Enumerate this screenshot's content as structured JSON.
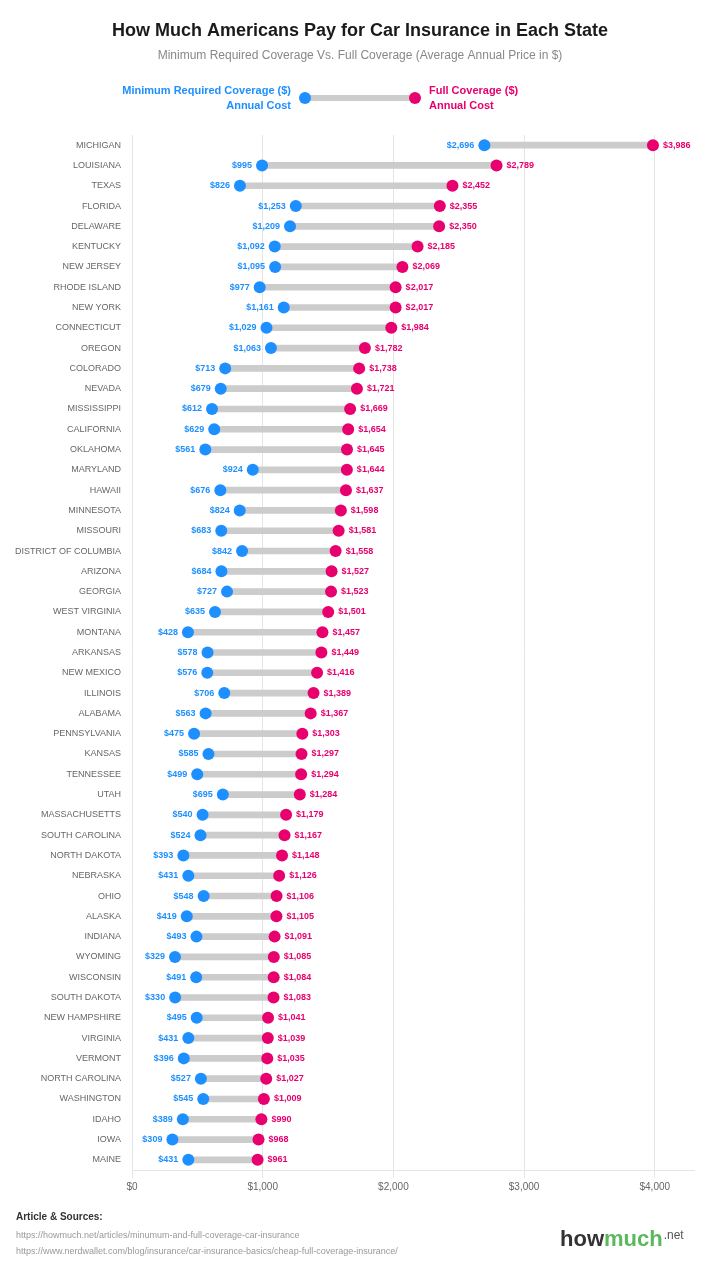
{
  "chart_data": {
    "type": "dumbbell",
    "orientation": "horizontal",
    "title": "How Much Americans Pay for Car Insurance in Each State",
    "subtitle": "Minimum Required Coverage Vs. Full Coverage (Average Annual Price in $)",
    "categories": [
      "MICHIGAN",
      "LOUISIANA",
      "TEXAS",
      "FLORIDA",
      "DELAWARE",
      "KENTUCKY",
      "NEW JERSEY",
      "RHODE ISLAND",
      "NEW YORK",
      "CONNECTICUT",
      "OREGON",
      "COLORADO",
      "NEVADA",
      "MISSISSIPPI",
      "CALIFORNIA",
      "OKLAHOMA",
      "MARYLAND",
      "HAWAII",
      "MINNESOTA",
      "MISSOURI",
      "DISTRICT OF COLUMBIA",
      "ARIZONA",
      "GEORGIA",
      "WEST VIRGINIA",
      "MONTANA",
      "ARKANSAS",
      "NEW MEXICO",
      "ILLINOIS",
      "ALABAMA",
      "PENNSYLVANIA",
      "KANSAS",
      "TENNESSEE",
      "UTAH",
      "MASSACHUSETTS",
      "SOUTH CAROLINA",
      "NORTH DAKOTA",
      "NEBRASKA",
      "OHIO",
      "ALASKA",
      "INDIANA",
      "WYOMING",
      "WISCONSIN",
      "SOUTH DAKOTA",
      "NEW HAMPSHIRE",
      "VIRGINIA",
      "VERMONT",
      "NORTH CAROLINA",
      "WASHINGTON",
      "IDAHO",
      "IOWA",
      "MAINE"
    ],
    "series": [
      {
        "name": "Minimum Required Coverage ($)\nAnnual Cost",
        "color": "#1E8FFF",
        "values": [
          2696,
          995,
          826,
          1253,
          1209,
          1092,
          1095,
          977,
          1161,
          1029,
          1063,
          713,
          679,
          612,
          629,
          561,
          924,
          676,
          824,
          683,
          842,
          684,
          727,
          635,
          428,
          578,
          576,
          706,
          563,
          475,
          585,
          499,
          695,
          540,
          524,
          393,
          431,
          548,
          419,
          493,
          329,
          491,
          330,
          495,
          431,
          396,
          527,
          545,
          389,
          309,
          431
        ],
        "value_labels": [
          "$2,696",
          "$995",
          "$826",
          "$1,253",
          "$1,209",
          "$1,092",
          "$1,095",
          "$977",
          "$1,161",
          "$1,029",
          "$1,063",
          "$713",
          "$679",
          "$612",
          "$629",
          "$561",
          "$924",
          "$676",
          "$824",
          "$683",
          "$842",
          "$684",
          "$727",
          "$635",
          "$428",
          "$578",
          "$576",
          "$706",
          "$563",
          "$475",
          "$585",
          "$499",
          "$695",
          "$540",
          "$524",
          "$393",
          "$431",
          "$548",
          "$419",
          "$493",
          "$329",
          "$491",
          "$330",
          "$495",
          "$431",
          "$396",
          "$527",
          "$545",
          "$389",
          "$309",
          "$431"
        ]
      },
      {
        "name": "Full Coverage ($)\nAnnual Cost",
        "color": "#E8006E",
        "values": [
          3986,
          2789,
          2452,
          2355,
          2350,
          2185,
          2069,
          2017,
          2017,
          1984,
          1782,
          1738,
          1721,
          1669,
          1654,
          1645,
          1644,
          1637,
          1598,
          1581,
          1558,
          1527,
          1523,
          1501,
          1457,
          1449,
          1416,
          1389,
          1367,
          1303,
          1297,
          1294,
          1284,
          1179,
          1167,
          1148,
          1126,
          1106,
          1105,
          1091,
          1085,
          1084,
          1083,
          1041,
          1039,
          1035,
          1027,
          1009,
          990,
          968,
          961
        ],
        "value_labels": [
          "$3,986",
          "$2,789",
          "$2,452",
          "$2,355",
          "$2,350",
          "$2,185",
          "$2,069",
          "$2,017",
          "$2,017",
          "$1,984",
          "$1,782",
          "$1,738",
          "$1,721",
          "$1,669",
          "$1,654",
          "$1,645",
          "$1,644",
          "$1,637",
          "$1,598",
          "$1,581",
          "$1,558",
          "$1,527",
          "$1,523",
          "$1,501",
          "$1,457",
          "$1,449",
          "$1,416",
          "$1,389",
          "$1,367",
          "$1,303",
          "$1,297",
          "$1,294",
          "$1,284",
          "$1,179",
          "$1,167",
          "$1,148",
          "$1,126",
          "$1,106",
          "$1,105",
          "$1,091",
          "$1,085",
          "$1,084",
          "$1,083",
          "$1,041",
          "$1,039",
          "$1,035",
          "$1,027",
          "$1,009",
          "$990",
          "$968",
          "$961"
        ]
      }
    ],
    "xlim": [
      0,
      4300
    ],
    "xticks": [
      {
        "value": 0,
        "label": "$0"
      },
      {
        "value": 1000,
        "label": "$1,000"
      },
      {
        "value": 2000,
        "label": "$2,000"
      },
      {
        "value": 3000,
        "label": "$3,000"
      },
      {
        "value": 4000,
        "label": "$4,000"
      }
    ],
    "grid": true,
    "legend": "top",
    "data_labels": true,
    "annotations": [
      "Article & Sources:",
      "https://howmuch.net/articles/minumum-and-full-coverage-car-insurance",
      "https://www.nerdwallet.com/blog/insurance/car-insurance-basics/cheap-full-coverage-insurance/",
      "how",
      "much",
      ".net"
    ]
  }
}
